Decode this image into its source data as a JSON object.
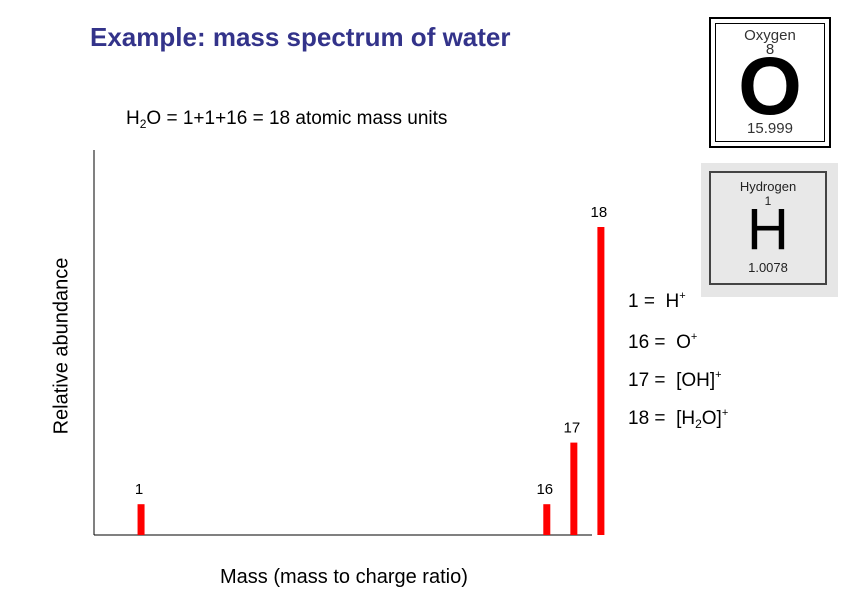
{
  "title": "Example: mass spectrum of water",
  "formula": {
    "prefix": "H",
    "sub": "2",
    "suffix": "O = 1+1+16 = 18 atomic mass units"
  },
  "chart_data": {
    "type": "bar",
    "title": "",
    "xlabel": "Mass (mass to charge ratio)",
    "ylabel": "Relative abundance",
    "x": [
      1,
      16,
      17,
      18
    ],
    "values": [
      8,
      8,
      24,
      80
    ],
    "data_labels": [
      "1",
      "16",
      "17",
      "18"
    ],
    "xlim": [
      0,
      19
    ],
    "ylim": [
      0,
      100
    ],
    "grid": false,
    "bar_color": "#ff0000"
  },
  "oxygen_tile": {
    "name": "Oxygen",
    "number": "8",
    "symbol": "O",
    "mass": "15.999"
  },
  "hydrogen_tile": {
    "name": "Hydrogen",
    "number": "1",
    "symbol": "H",
    "mass": "1.0078"
  },
  "legend": [
    {
      "mass": "1",
      "eq": " = ",
      "ion": "H",
      "sub": "",
      "ion_end": "",
      "charge": "+"
    },
    {
      "mass": "16",
      "eq": " = ",
      "ion": "O",
      "sub": "",
      "ion_end": "",
      "charge": "+"
    },
    {
      "mass": "17",
      "eq": " = ",
      "ion": "[OH]",
      "sub": "",
      "ion_end": "",
      "charge": "+"
    },
    {
      "mass": "18",
      "eq": " = ",
      "ion": "[H",
      "sub": "2",
      "ion_end": "O]",
      "charge": "+"
    }
  ]
}
